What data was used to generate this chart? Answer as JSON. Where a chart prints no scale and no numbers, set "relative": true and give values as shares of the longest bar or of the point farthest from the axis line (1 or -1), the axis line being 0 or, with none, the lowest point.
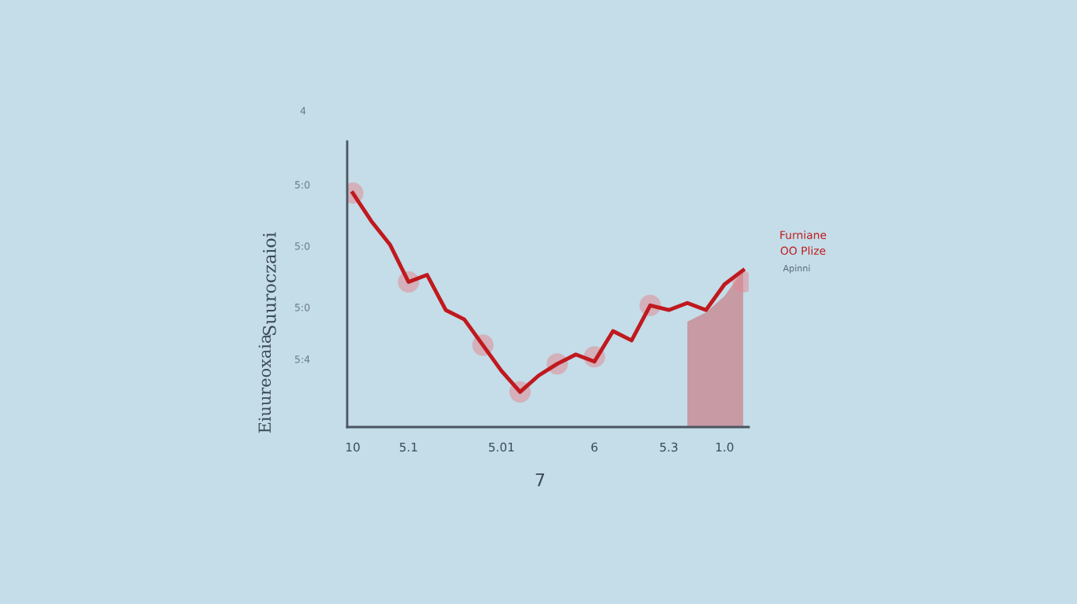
{
  "chart_data": {
    "type": "line",
    "relative": true,
    "ylabel": "Suuroczaioi",
    "grid": false,
    "legend": false,
    "categories": [
      "10",
      null,
      null,
      "5.1",
      null,
      null,
      null,
      null,
      "5.01",
      null,
      null,
      null,
      null,
      "6",
      null,
      null,
      null,
      "5.3",
      null,
      null,
      "1.0",
      null
    ],
    "series": [
      {
        "type": "area",
        "color": "#c98a92",
        "values": [
          null,
          null,
          null,
          null,
          null,
          null,
          null,
          null,
          null,
          null,
          null,
          null,
          null,
          null,
          null,
          null,
          null,
          null,
          0.45,
          0.49,
          0.56,
          0.67
        ]
      },
      {
        "color": "#c0191e",
        "marker": "none",
        "values": [
          1.0,
          0.88,
          0.78,
          0.62,
          0.65,
          0.5,
          0.46,
          0.35,
          0.24,
          0.15,
          0.22,
          0.27,
          0.31,
          0.28,
          0.41,
          0.37,
          0.52,
          0.5,
          0.53,
          0.5,
          0.61,
          0.67
        ]
      },
      {
        "type": "scatter",
        "color": "#e08a94",
        "marker": "circle",
        "values": [
          1.0,
          null,
          null,
          0.62,
          null,
          null,
          null,
          0.35,
          null,
          0.15,
          null,
          0.27,
          null,
          0.3,
          null,
          null,
          0.52,
          null,
          null,
          null,
          null,
          0.62
        ]
      }
    ],
    "annotations": [
      "7",
      "4",
      "5:0",
      "5:0",
      "5:0",
      "5:4",
      "Eiuureoxaia",
      "Furniane",
      "OO Plize",
      "Apinni"
    ]
  }
}
